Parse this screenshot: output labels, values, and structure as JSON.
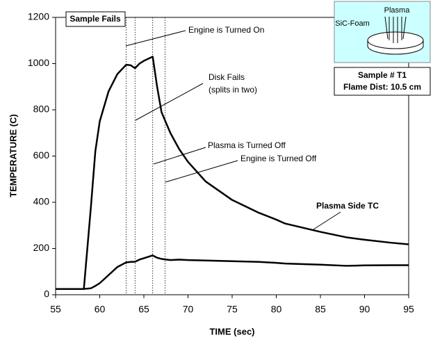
{
  "chart_data": {
    "type": "line",
    "x_label": "TIME (sec)",
    "y_label": "TEMPERATURE (C)",
    "x": [
      55,
      58,
      58.2,
      59,
      59.5,
      60,
      61,
      62,
      63,
      63.5,
      64,
      64.5,
      65,
      66,
      66.5,
      67,
      68,
      69,
      70,
      72,
      75,
      78,
      80,
      81,
      85,
      88,
      90,
      93,
      95
    ],
    "series": [
      {
        "name": "Plasma Side TC",
        "color": "#000000",
        "values": [
          25,
          25,
          25,
          380,
          620,
          750,
          880,
          955,
          995,
          993,
          980,
          1000,
          1012,
          1030,
          900,
          790,
          700,
          630,
          575,
          490,
          410,
          355,
          325,
          308,
          272,
          248,
          238,
          225,
          218
        ]
      },
      {
        "color": "#000000",
        "values": [
          25,
          25,
          25,
          28,
          38,
          50,
          85,
          120,
          140,
          142,
          143,
          152,
          158,
          170,
          160,
          155,
          150,
          152,
          150,
          148,
          145,
          142,
          138,
          135,
          130,
          125,
          127,
          128,
          128
        ]
      }
    ],
    "xlim": [
      55,
      95
    ],
    "ylim": [
      0,
      1200
    ],
    "xticks": [
      55,
      60,
      65,
      70,
      75,
      80,
      85,
      90,
      95
    ],
    "yticks": [
      0,
      200,
      400,
      600,
      800,
      1000,
      1200
    ],
    "grid": false,
    "event_lines": [
      63,
      64,
      66,
      67.4
    ],
    "status_box": "Sample Fails",
    "annotations": [
      "Engine is Turned On",
      "Disk Fails",
      "(splits in two)",
      "Plasma is Turned Off",
      "Engine is Turned Off"
    ],
    "inset": {
      "labels": [
        "Plasma",
        "SiC-Foam"
      ],
      "caption": [
        "Sample # T1",
        "Flame Dist: 10.5 cm"
      ]
    }
  }
}
